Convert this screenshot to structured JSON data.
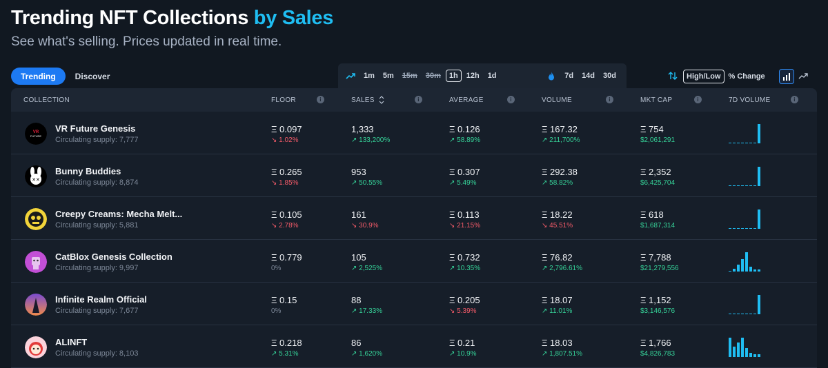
{
  "header": {
    "title_main": "Trending NFT Collections",
    "title_accent": "by Sales",
    "subtitle": "See what's selling. Prices updated in real time."
  },
  "tabs": [
    {
      "label": "Trending",
      "active": true
    },
    {
      "label": "Discover",
      "active": false
    }
  ],
  "timeframes": {
    "short": [
      {
        "label": "1m",
        "state": "normal"
      },
      {
        "label": "5m",
        "state": "normal"
      },
      {
        "label": "15m",
        "state": "strike"
      },
      {
        "label": "30m",
        "state": "strike"
      },
      {
        "label": "1h",
        "state": "selected"
      },
      {
        "label": "12h",
        "state": "normal"
      },
      {
        "label": "1d",
        "state": "normal"
      }
    ],
    "long": [
      {
        "label": "7d"
      },
      {
        "label": "14d"
      },
      {
        "label": "30d"
      }
    ]
  },
  "controls": {
    "high_low": "High/Low",
    "pct_change": "% Change"
  },
  "columns": {
    "collection": "COLLECTION",
    "floor": "FLOOR",
    "sales": "SALES",
    "average": "AVERAGE",
    "volume": "VOLUME",
    "mkt_cap": "MKT CAP",
    "vol7d": "7D VOLUME"
  },
  "colors": {
    "accent": "#1fbdf2",
    "up": "#36d399",
    "down": "#f45b69"
  },
  "rows": [
    {
      "name": "VR Future Genesis",
      "supply": "Circulating supply: 7,777",
      "avatar": "vr-future",
      "floor": "Ξ 0.097",
      "floor_chg": "1.02%",
      "floor_dir": "down",
      "sales": "1,333",
      "sales_chg": "133,200%",
      "sales_dir": "up",
      "avg": "Ξ 0.126",
      "avg_chg": "58.89%",
      "avg_dir": "up",
      "vol": "Ξ 167.32",
      "vol_chg": "211,700%",
      "vol_dir": "up",
      "mcap": "Ξ 754",
      "mcap_usd": "$2,061,291",
      "spark": [
        0.03,
        0.03,
        0.03,
        0.03,
        0.03,
        0.03,
        0.03,
        1.0
      ]
    },
    {
      "name": "Bunny Buddies",
      "supply": "Circulating supply: 8,874",
      "avatar": "bunny",
      "floor": "Ξ 0.265",
      "floor_chg": "1.85%",
      "floor_dir": "down",
      "sales": "953",
      "sales_chg": "50.55%",
      "sales_dir": "up",
      "avg": "Ξ 0.307",
      "avg_chg": "5.49%",
      "avg_dir": "up",
      "vol": "Ξ 292.38",
      "vol_chg": "58.82%",
      "vol_dir": "up",
      "mcap": "Ξ 2,352",
      "mcap_usd": "$6,425,704",
      "spark": [
        0.03,
        0.03,
        0.03,
        0.03,
        0.03,
        0.03,
        0.03,
        1.0
      ]
    },
    {
      "name": "Creepy Creams: Mecha Melt...",
      "supply": "Circulating supply: 5,881",
      "avatar": "creepy",
      "floor": "Ξ 0.105",
      "floor_chg": "2.78%",
      "floor_dir": "down",
      "sales": "161",
      "sales_chg": "30.9%",
      "sales_dir": "down",
      "avg": "Ξ 0.113",
      "avg_chg": "21.15%",
      "avg_dir": "down",
      "vol": "Ξ 18.22",
      "vol_chg": "45.51%",
      "vol_dir": "down",
      "mcap": "Ξ 618",
      "mcap_usd": "$1,687,314",
      "spark": [
        0.03,
        0.03,
        0.03,
        0.03,
        0.03,
        0.03,
        0.03,
        1.0
      ]
    },
    {
      "name": "CatBlox Genesis Collection",
      "supply": "Circulating supply: 9,997",
      "avatar": "catblox",
      "floor": "Ξ 0.779",
      "floor_chg": "0%",
      "floor_dir": "flat",
      "sales": "105",
      "sales_chg": "2,525%",
      "sales_dir": "up",
      "avg": "Ξ 0.732",
      "avg_chg": "10.35%",
      "avg_dir": "up",
      "vol": "Ξ 76.82",
      "vol_chg": "2,796.61%",
      "vol_dir": "up",
      "mcap": "Ξ 7,788",
      "mcap_usd": "$21,279,556",
      "spark": [
        0.05,
        0.15,
        0.35,
        0.65,
        1.0,
        0.25,
        0.1,
        0.1
      ]
    },
    {
      "name": "Infinite Realm Official",
      "supply": "Circulating supply: 7,677",
      "avatar": "infinite",
      "floor": "Ξ 0.15",
      "floor_chg": "0%",
      "floor_dir": "flat",
      "sales": "88",
      "sales_chg": "17.33%",
      "sales_dir": "up",
      "avg": "Ξ 0.205",
      "avg_chg": "5.39%",
      "avg_dir": "down",
      "vol": "Ξ 18.07",
      "vol_chg": "11.01%",
      "vol_dir": "up",
      "mcap": "Ξ 1,152",
      "mcap_usd": "$3,146,576",
      "spark": [
        0.03,
        0.03,
        0.03,
        0.03,
        0.03,
        0.03,
        0.03,
        1.0
      ]
    },
    {
      "name": "ALINFT",
      "supply": "Circulating supply: 8,103",
      "avatar": "alinft",
      "floor": "Ξ 0.218",
      "floor_chg": "5.31%",
      "floor_dir": "up",
      "sales": "86",
      "sales_chg": "1,620%",
      "sales_dir": "up",
      "avg": "Ξ 0.21",
      "avg_chg": "10.9%",
      "avg_dir": "up",
      "vol": "Ξ 18.03",
      "vol_chg": "1,807.51%",
      "vol_dir": "up",
      "mcap": "Ξ 1,766",
      "mcap_usd": "$4,826,783",
      "spark": [
        1.0,
        0.55,
        0.75,
        1.0,
        0.45,
        0.2,
        0.15,
        0.15
      ]
    }
  ]
}
